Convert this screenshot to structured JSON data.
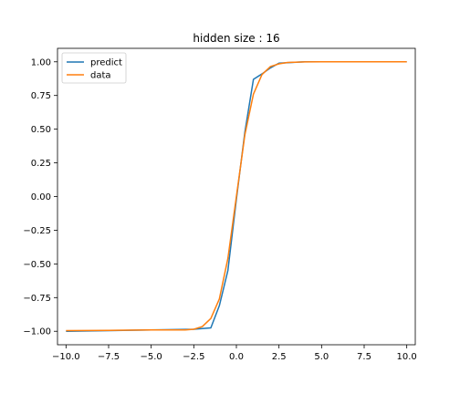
{
  "chart_data": {
    "type": "line",
    "title": "hidden size : 16",
    "xlabel": "",
    "ylabel": "",
    "xlim": [
      -10.5,
      10.5
    ],
    "ylim": [
      -1.1,
      1.1
    ],
    "xticks": [
      -10.0,
      -7.5,
      -5.0,
      -2.5,
      0.0,
      2.5,
      5.0,
      7.5,
      10.0
    ],
    "xtick_labels": [
      "−10.0",
      "−7.5",
      "−5.0",
      "−2.5",
      "0.0",
      "2.5",
      "5.0",
      "7.5",
      "10.0"
    ],
    "yticks": [
      -1.0,
      -0.75,
      -0.5,
      -0.25,
      0.0,
      0.25,
      0.5,
      0.75,
      1.0
    ],
    "ytick_labels": [
      "−1.00",
      "−0.75",
      "−0.50",
      "−0.25",
      "0.00",
      "0.25",
      "0.50",
      "0.75",
      "1.00"
    ],
    "grid": false,
    "legend_position": "top-left",
    "series": [
      {
        "name": "predict",
        "color": "#1f77b4",
        "x": [
          -10.0,
          -2.5,
          -1.5,
          -1.0,
          -0.5,
          0.0,
          0.5,
          1.0,
          1.5,
          2.0,
          2.5,
          4.0,
          10.0
        ],
        "y": [
          -1.0,
          -0.985,
          -0.975,
          -0.81,
          -0.55,
          -0.02,
          0.48,
          0.87,
          0.91,
          0.955,
          0.99,
          1.0,
          1.0
        ]
      },
      {
        "name": "data",
        "color": "#ff7f0e",
        "x": [
          -10.0,
          -7.5,
          -5.0,
          -3.0,
          -2.5,
          -2.0,
          -1.5,
          -1.0,
          -0.5,
          0.0,
          0.5,
          1.0,
          1.5,
          2.0,
          2.5,
          3.0,
          4.0,
          5.0,
          7.5,
          10.0
        ],
        "y": [
          -0.995,
          -0.993,
          -0.99,
          -0.99,
          -0.985,
          -0.965,
          -0.905,
          -0.76,
          -0.46,
          0.0,
          0.46,
          0.76,
          0.905,
          0.965,
          0.985,
          0.995,
          0.999,
          1.0,
          1.0,
          1.0
        ]
      }
    ]
  }
}
